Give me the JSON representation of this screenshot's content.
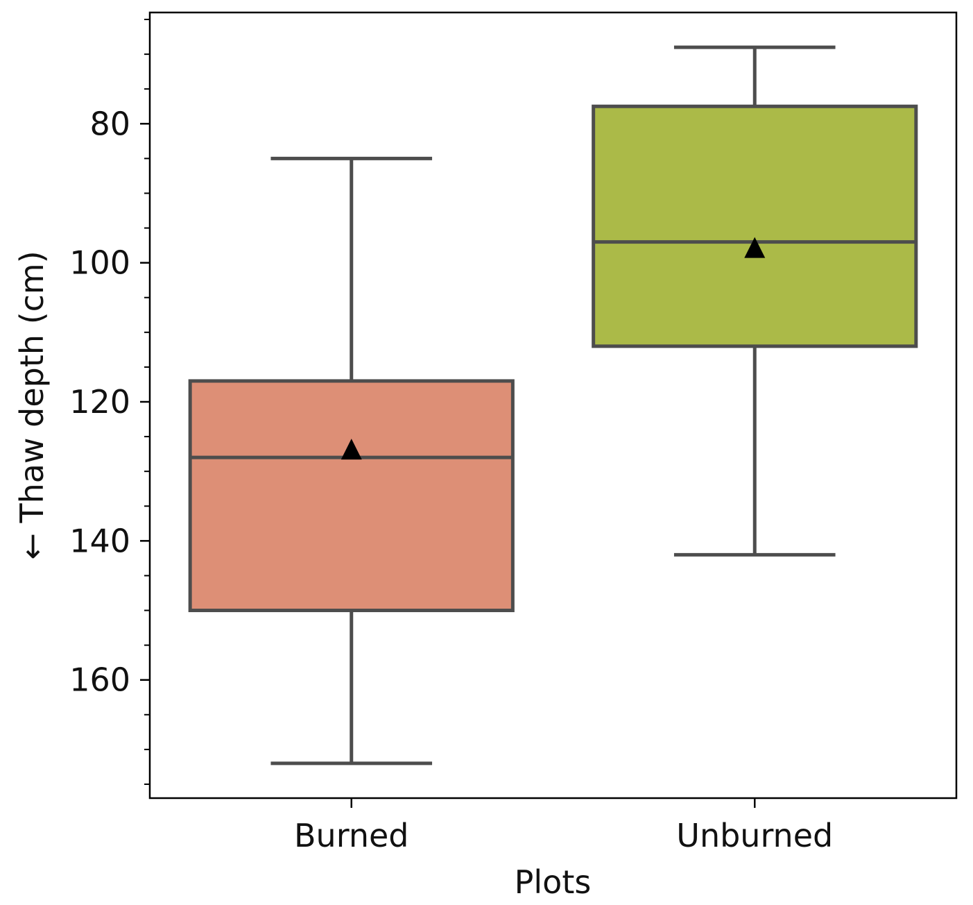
{
  "chart_data": {
    "type": "box",
    "xlabel": "Plots",
    "ylabel": "← Thaw depth (cm)",
    "y_inverted": true,
    "ylim": [
      64,
      177
    ],
    "yticks": [
      80,
      100,
      120,
      140,
      160
    ],
    "ytick_labels": [
      "80",
      "100",
      "120",
      "140",
      "160"
    ],
    "y_minor_tick_step": 5,
    "grid": false,
    "categories": [
      "Burned",
      "Unburned"
    ],
    "series": [
      {
        "category": "Burned",
        "whisker_low": 85,
        "q1": 117,
        "median": 128,
        "q3": 150,
        "whisker_high": 172,
        "mean": 127,
        "color": "#dd8f76"
      },
      {
        "category": "Unburned",
        "whisker_low": 69,
        "q1": 77.5,
        "median": 97,
        "q3": 112,
        "whisker_high": 142,
        "mean": 98,
        "color": "#abba48"
      }
    ],
    "line_color": "#4d4d4d",
    "mean_marker": "triangle",
    "mean_marker_color": "#000000"
  }
}
